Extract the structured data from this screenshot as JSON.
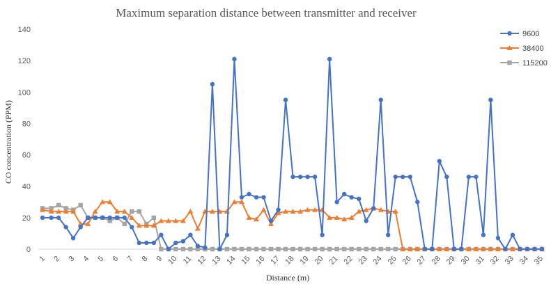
{
  "chart_data": {
    "type": "line",
    "title": "Maximum separation distance between transmitter and receiver",
    "xlabel": "Distance (m)",
    "ylabel": "CO concentration (PPM)",
    "ylim": [
      0,
      140
    ],
    "yticks": [
      "0",
      "20",
      "40",
      "60",
      "80",
      "100",
      "120",
      "140"
    ],
    "xticks": [
      "1",
      "2",
      "3",
      "4",
      "5",
      "6",
      "7",
      "8",
      "9",
      "10",
      "11",
      "12",
      "13",
      "14",
      "15",
      "16",
      "17",
      "18",
      "19",
      "20",
      "21",
      "22",
      "23",
      "24",
      "25",
      "26",
      "27",
      "28",
      "29",
      "30",
      "31",
      "32",
      "33",
      "34",
      "35"
    ],
    "grid": false,
    "legend_position": "top-right",
    "series": [
      {
        "name": "9600",
        "color": "#4472C4",
        "marker": "circle",
        "points": [
          [
            1,
            20
          ],
          [
            1.6,
            20
          ],
          [
            2.1,
            20
          ],
          [
            2.6,
            14
          ],
          [
            3.1,
            7
          ],
          [
            3.6,
            14
          ],
          [
            4.1,
            20
          ],
          [
            4.6,
            20
          ],
          [
            5.1,
            20
          ],
          [
            5.6,
            20
          ],
          [
            6.1,
            20
          ],
          [
            6.6,
            20
          ],
          [
            7.1,
            14
          ],
          [
            7.6,
            4
          ],
          [
            8.1,
            4
          ],
          [
            8.6,
            4
          ],
          [
            9.1,
            9
          ],
          [
            9.6,
            0
          ],
          [
            10.1,
            4
          ],
          [
            10.6,
            5
          ],
          [
            11.1,
            9
          ],
          [
            11.6,
            2
          ],
          [
            12.1,
            1
          ],
          [
            12.6,
            105
          ],
          [
            13.1,
            0
          ],
          [
            13.6,
            9
          ],
          [
            14.1,
            121
          ],
          [
            14.6,
            33
          ],
          [
            15.1,
            35
          ],
          [
            15.6,
            33
          ],
          [
            16.1,
            33
          ],
          [
            16.6,
            18
          ],
          [
            17.1,
            25
          ],
          [
            17.6,
            95
          ],
          [
            18.1,
            46
          ],
          [
            18.6,
            46
          ],
          [
            19.1,
            46
          ],
          [
            19.6,
            46
          ],
          [
            20.1,
            9
          ],
          [
            20.6,
            121
          ],
          [
            21.1,
            30
          ],
          [
            21.6,
            35
          ],
          [
            22.1,
            33
          ],
          [
            22.6,
            32
          ],
          [
            23.1,
            18
          ],
          [
            23.6,
            26
          ],
          [
            24.1,
            95
          ],
          [
            24.6,
            9
          ],
          [
            25.1,
            46
          ],
          [
            25.6,
            46
          ],
          [
            26.1,
            46
          ],
          [
            26.6,
            30
          ],
          [
            27.1,
            0
          ],
          [
            27.6,
            0
          ],
          [
            28.1,
            56
          ],
          [
            28.6,
            46
          ],
          [
            29.1,
            0
          ],
          [
            29.6,
            0
          ],
          [
            30.1,
            46
          ],
          [
            30.6,
            46
          ],
          [
            31.1,
            9
          ],
          [
            31.6,
            95
          ],
          [
            32.1,
            7
          ],
          [
            32.6,
            0
          ],
          [
            33.1,
            9
          ],
          [
            33.6,
            0
          ],
          [
            34.1,
            0
          ],
          [
            34.6,
            0
          ],
          [
            35.1,
            0
          ]
        ]
      },
      {
        "name": "38400",
        "color": "#ED7D31",
        "marker": "triangle",
        "points": [
          [
            1,
            25
          ],
          [
            1.6,
            24
          ],
          [
            2.1,
            24
          ],
          [
            2.6,
            24
          ],
          [
            3.1,
            24
          ],
          [
            3.6,
            16
          ],
          [
            4.1,
            16
          ],
          [
            4.6,
            24
          ],
          [
            5.1,
            30
          ],
          [
            5.6,
            30
          ],
          [
            6.1,
            24
          ],
          [
            6.6,
            24
          ],
          [
            7.1,
            20
          ],
          [
            7.6,
            15
          ],
          [
            8.1,
            15
          ],
          [
            8.6,
            15
          ],
          [
            9.1,
            18
          ],
          [
            9.6,
            18
          ],
          [
            10.1,
            18
          ],
          [
            10.6,
            18
          ],
          [
            11.1,
            24
          ],
          [
            11.6,
            13
          ],
          [
            12.1,
            24
          ],
          [
            12.6,
            24
          ],
          [
            13.1,
            24
          ],
          [
            13.6,
            24
          ],
          [
            14.1,
            30
          ],
          [
            14.6,
            30
          ],
          [
            15.1,
            20
          ],
          [
            15.6,
            19
          ],
          [
            16.1,
            25
          ],
          [
            16.6,
            16
          ],
          [
            17.1,
            23
          ],
          [
            17.6,
            24
          ],
          [
            18.1,
            24
          ],
          [
            18.6,
            24
          ],
          [
            19.1,
            25
          ],
          [
            19.6,
            25
          ],
          [
            20.1,
            25
          ],
          [
            20.6,
            20
          ],
          [
            21.1,
            20
          ],
          [
            21.6,
            19
          ],
          [
            22.1,
            20
          ],
          [
            22.6,
            24
          ],
          [
            23.1,
            25
          ],
          [
            23.6,
            26
          ],
          [
            24.1,
            25
          ],
          [
            24.6,
            24
          ],
          [
            25.1,
            24
          ],
          [
            25.6,
            0
          ],
          [
            26.1,
            0
          ],
          [
            26.6,
            0
          ],
          [
            27.1,
            0
          ],
          [
            27.6,
            0
          ],
          [
            28.1,
            0
          ],
          [
            28.6,
            0
          ],
          [
            29.1,
            0
          ],
          [
            29.6,
            0
          ],
          [
            30.1,
            0
          ],
          [
            30.6,
            0
          ],
          [
            31.1,
            0
          ],
          [
            31.6,
            0
          ],
          [
            32.1,
            0
          ],
          [
            32.6,
            0
          ],
          [
            33.1,
            0
          ],
          [
            33.6,
            0
          ],
          [
            34.1,
            0
          ],
          [
            34.6,
            0
          ],
          [
            35.1,
            0
          ]
        ]
      },
      {
        "name": "115200",
        "color": "#A5A5A5",
        "marker": "square",
        "points": [
          [
            1,
            26
          ],
          [
            1.6,
            26
          ],
          [
            2.1,
            28
          ],
          [
            2.6,
            26
          ],
          [
            3.1,
            25
          ],
          [
            3.6,
            28
          ],
          [
            4.1,
            20
          ],
          [
            4.6,
            20
          ],
          [
            5.1,
            20
          ],
          [
            5.6,
            18
          ],
          [
            6.1,
            20
          ],
          [
            6.6,
            16
          ],
          [
            7.1,
            24
          ],
          [
            7.6,
            24
          ],
          [
            8.1,
            16
          ],
          [
            8.6,
            20
          ],
          [
            9.1,
            0
          ],
          [
            9.6,
            0
          ],
          [
            10.1,
            0
          ],
          [
            10.6,
            0
          ],
          [
            11.1,
            0
          ],
          [
            11.6,
            0
          ],
          [
            12.1,
            0
          ],
          [
            12.6,
            0
          ],
          [
            13.1,
            0
          ],
          [
            13.6,
            0
          ],
          [
            14.1,
            0
          ],
          [
            14.6,
            0
          ],
          [
            15.1,
            0
          ],
          [
            15.6,
            0
          ],
          [
            16.1,
            0
          ],
          [
            16.6,
            0
          ],
          [
            17.1,
            0
          ],
          [
            17.6,
            0
          ],
          [
            18.1,
            0
          ],
          [
            18.6,
            0
          ],
          [
            19.1,
            0
          ],
          [
            19.6,
            0
          ],
          [
            20.1,
            0
          ],
          [
            20.6,
            0
          ],
          [
            21.1,
            0
          ],
          [
            21.6,
            0
          ],
          [
            22.1,
            0
          ],
          [
            22.6,
            0
          ],
          [
            23.1,
            0
          ],
          [
            23.6,
            0
          ],
          [
            24.1,
            0
          ],
          [
            24.6,
            0
          ],
          [
            25.1,
            0
          ],
          [
            25.6,
            0
          ],
          [
            26.1,
            0
          ],
          [
            26.6,
            0
          ],
          [
            27.1,
            0
          ],
          [
            27.6,
            0
          ],
          [
            28.1,
            0
          ],
          [
            28.6,
            0
          ],
          [
            29.1,
            0
          ],
          [
            29.6,
            0
          ],
          [
            30.1,
            0
          ],
          [
            30.6,
            0
          ],
          [
            31.1,
            0
          ],
          [
            31.6,
            0
          ],
          [
            32.1,
            0
          ],
          [
            32.6,
            0
          ],
          [
            33.1,
            0
          ],
          [
            33.6,
            0
          ],
          [
            34.1,
            0
          ],
          [
            34.6,
            0
          ],
          [
            35.1,
            0
          ]
        ]
      }
    ]
  }
}
